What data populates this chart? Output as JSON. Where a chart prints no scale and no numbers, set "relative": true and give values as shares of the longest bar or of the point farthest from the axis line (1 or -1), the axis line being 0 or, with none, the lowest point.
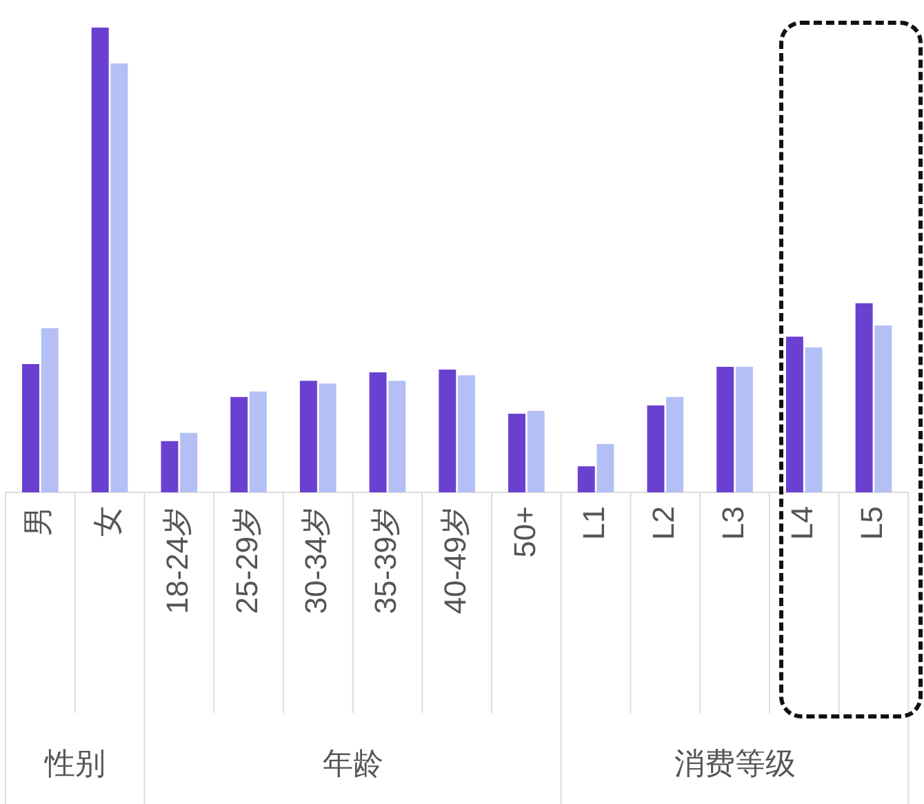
{
  "chart_data": {
    "type": "bar",
    "relative": true,
    "categories": [
      "男",
      "女",
      "18-24岁",
      "25-29岁",
      "30-34岁",
      "35-39岁",
      "40-49岁",
      "50+",
      "L1",
      "L2",
      "L3",
      "L4",
      "L5"
    ],
    "series": [
      {
        "color": "#6a40d0",
        "values": [
          0.276,
          1,
          0.11,
          0.205,
          0.24,
          0.258,
          0.264,
          0.169,
          0.056,
          0.187,
          0.27,
          0.335,
          0.407
        ]
      },
      {
        "color": "#b4bff5",
        "values": [
          0.353,
          0.923,
          0.128,
          0.217,
          0.234,
          0.24,
          0.252,
          0.175,
          0.104,
          0.205,
          0.27,
          0.312,
          0.359
        ]
      }
    ],
    "annotations": [
      "性别",
      "年龄",
      "消费等级"
    ],
    "legend": false,
    "grid": false
  }
}
